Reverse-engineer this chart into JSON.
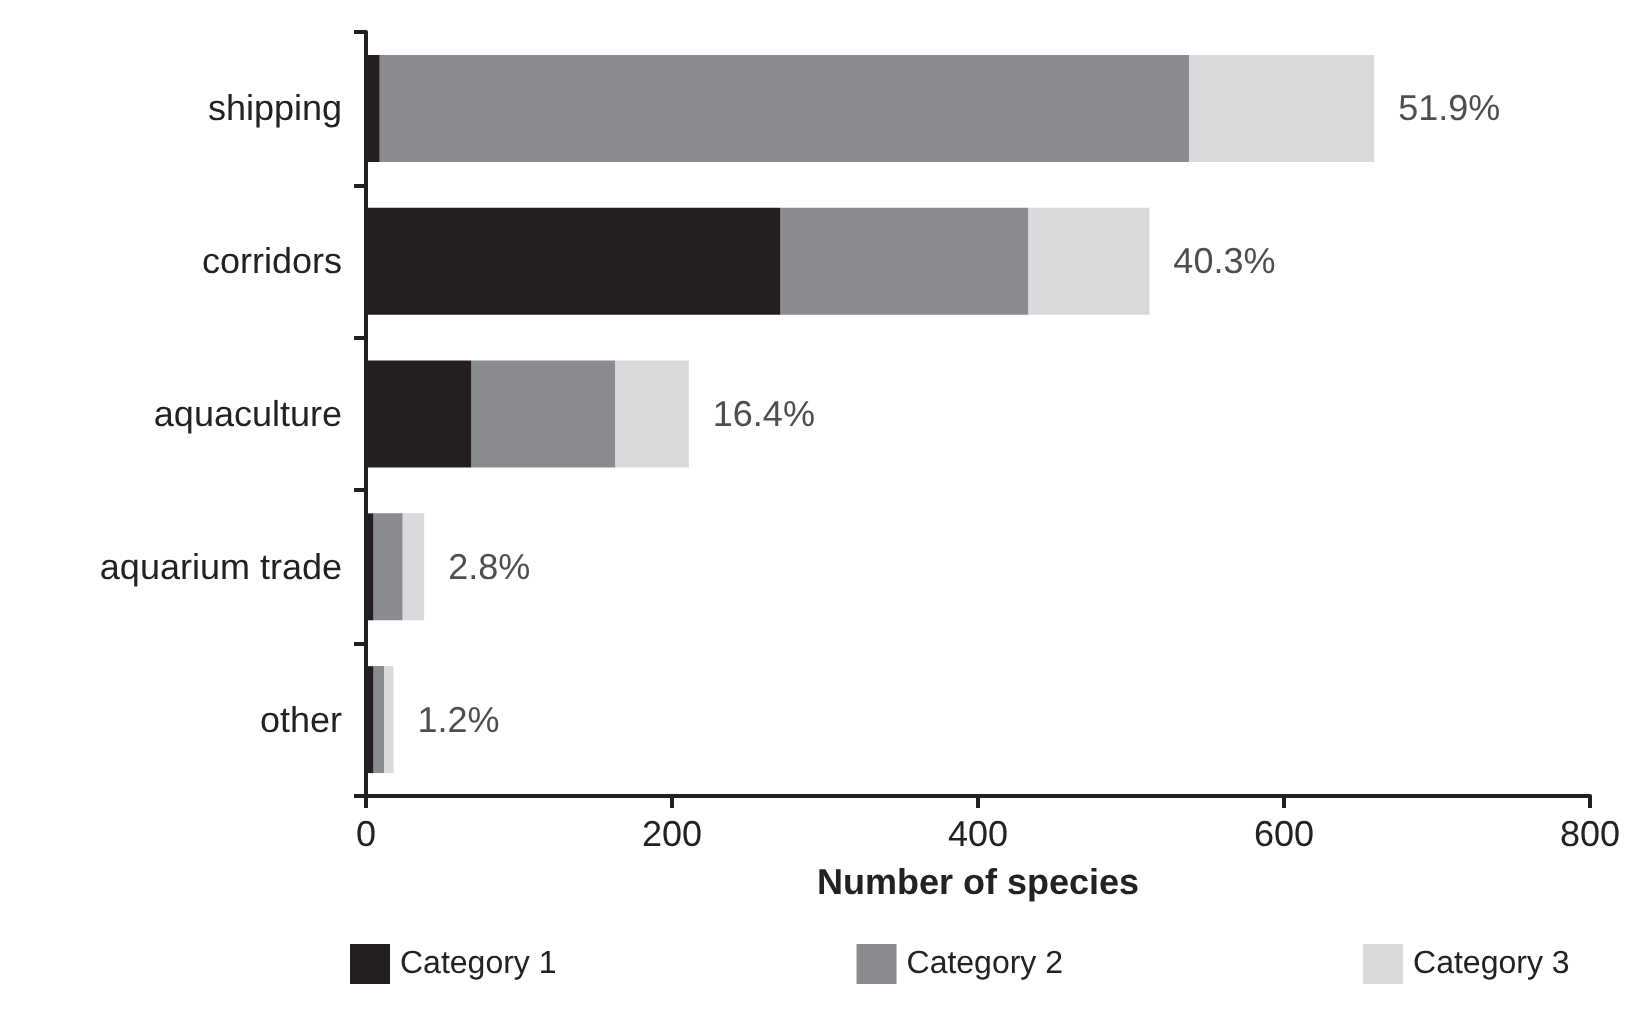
{
  "chart_data": {
    "type": "bar",
    "orientation": "horizontal",
    "stacked": true,
    "xlabel": "Number of species",
    "categories": [
      "shipping",
      "corridors",
      "aquaculture",
      "aquarium trade",
      "other"
    ],
    "series": [
      {
        "name": "Category 1",
        "color": "#231f20",
        "values": [
          9,
          271,
          69,
          5,
          5
        ]
      },
      {
        "name": "Category 2",
        "color": "#8a8b8e",
        "values": [
          529,
          162,
          94,
          19,
          7
        ]
      },
      {
        "name": "Category 3",
        "color": "#d9dadc",
        "values": [
          121,
          79,
          48,
          14,
          6
        ]
      }
    ],
    "annotations": [
      {
        "text": "51.9%",
        "x": 659,
        "y": "shipping"
      },
      {
        "text": "40.3%",
        "x": 512,
        "y": "corridors"
      },
      {
        "text": "16.4%",
        "x": 211,
        "y": "aquaculture"
      },
      {
        "text": "2.8%",
        "x": 38,
        "y": "aquarium trade"
      },
      {
        "text": "1.2%",
        "x": 18,
        "y": "other"
      }
    ],
    "xlim": [
      0,
      800
    ],
    "xticks": [
      0,
      200,
      400,
      600,
      800
    ],
    "grid": false,
    "legend": "bottom"
  }
}
